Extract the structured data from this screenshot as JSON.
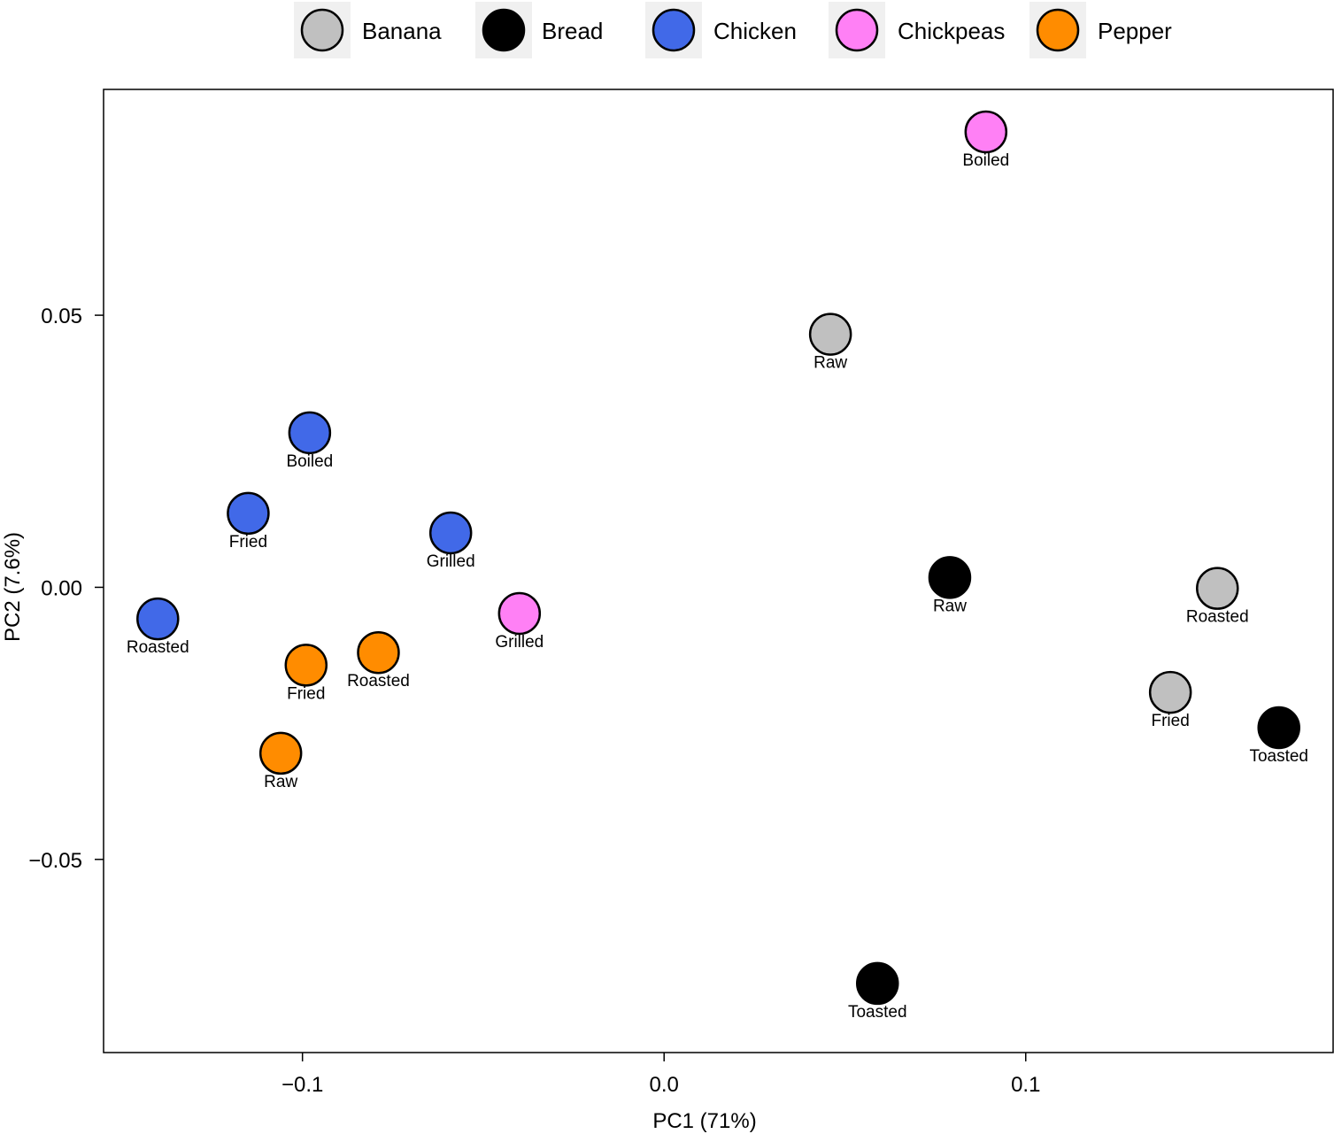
{
  "chart_data": {
    "type": "scatter",
    "xlabel": "PC1 (71%)",
    "ylabel": "PC2 (7.6%)",
    "xlim": [
      -0.155,
      0.185
    ],
    "ylim": [
      -0.0855,
      0.0915
    ],
    "xticks": [
      -0.1,
      0.0,
      0.1
    ],
    "xtick_labels": [
      "−0.1",
      "0.0",
      "0.1"
    ],
    "yticks": [
      -0.05,
      0.0,
      0.05
    ],
    "ytick_labels": [
      "−0.05",
      "0.00",
      "0.05"
    ],
    "grid": false,
    "legend_position": "top",
    "series": [
      {
        "name": "Banana",
        "color": "#c0c0c0",
        "points": [
          {
            "label": "Raw",
            "x": 0.046,
            "y": 0.0465
          },
          {
            "label": "Roasted",
            "x": 0.153,
            "y": -0.0002
          },
          {
            "label": "Fried",
            "x": 0.14,
            "y": -0.0193
          }
        ]
      },
      {
        "name": "Bread",
        "color": "#000000",
        "points": [
          {
            "label": "Raw",
            "x": 0.079,
            "y": 0.0018
          },
          {
            "label": "Toasted",
            "x": 0.17,
            "y": -0.0258
          },
          {
            "label": "Toasted",
            "x": 0.059,
            "y": -0.0728
          }
        ]
      },
      {
        "name": "Chicken",
        "color": "#4169e8",
        "points": [
          {
            "label": "Boiled",
            "x": -0.098,
            "y": 0.0284
          },
          {
            "label": "Fried",
            "x": -0.115,
            "y": 0.0136
          },
          {
            "label": "Grilled",
            "x": -0.059,
            "y": 0.01
          },
          {
            "label": "Roasted",
            "x": -0.14,
            "y": -0.0058
          }
        ]
      },
      {
        "name": "Chickpeas",
        "color": "#ff80f5",
        "points": [
          {
            "label": "Boiled",
            "x": 0.089,
            "y": 0.0837
          },
          {
            "label": "Grilled",
            "x": -0.04,
            "y": -0.0048
          }
        ]
      },
      {
        "name": "Pepper",
        "color": "#ff8c00",
        "points": [
          {
            "label": "Fried",
            "x": -0.099,
            "y": -0.0143
          },
          {
            "label": "Roasted",
            "x": -0.079,
            "y": -0.012
          },
          {
            "label": "Raw",
            "x": -0.106,
            "y": -0.0305
          }
        ]
      }
    ]
  }
}
